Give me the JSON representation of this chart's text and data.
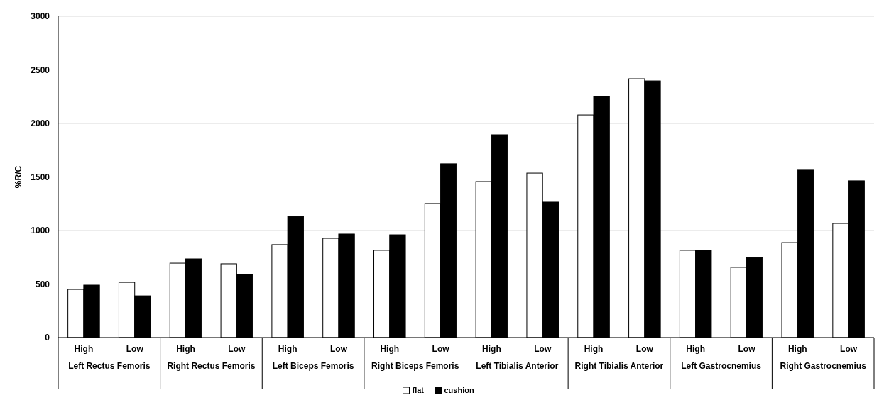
{
  "chart_data": {
    "type": "bar",
    "ylabel": "%R/C",
    "categories": [
      "High",
      "Low",
      "High",
      "Low",
      "High",
      "Low",
      "High",
      "Low",
      "High",
      "Low",
      "High",
      "Low",
      "High",
      "Low",
      "High",
      "Low"
    ],
    "annotations": [
      "Left Rectus Femoris",
      "Right Rectus Femoris",
      "Left Biceps Femoris",
      "Right Biceps Femoris",
      "Left Tibialis Anterior",
      "Right Tibialis Anterior",
      "Left Gastrocnemius",
      "Right Gastrocnemius"
    ],
    "series": [
      {
        "name": "flat",
        "color": "#ffffff",
        "values": [
          450,
          516,
          695,
          689,
          868,
          927,
          815,
          1252,
          1457,
          1536,
          2079,
          2417,
          815,
          656,
          887,
          1066
        ]
      },
      {
        "name": "cushion",
        "color": "#000000",
        "values": [
          490,
          390,
          735,
          590,
          1132,
          967,
          960,
          1623,
          1894,
          1265,
          2252,
          2397,
          815,
          748,
          1570,
          1464
        ]
      }
    ],
    "ylim": [
      0,
      3000
    ],
    "yticks": [
      0,
      500,
      1000,
      1500,
      2000,
      2500,
      3000
    ],
    "grid": "y",
    "legend": "bottom"
  }
}
